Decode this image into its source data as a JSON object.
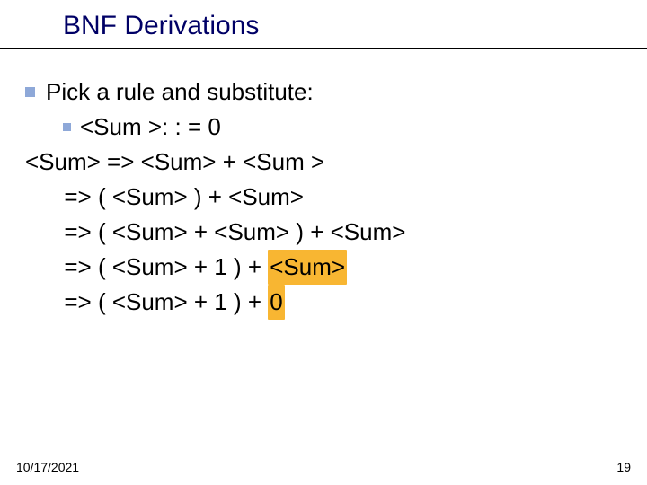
{
  "title": "BNF Derivations",
  "bullet_color": "#8ea8d8",
  "title_color": "#000066",
  "highlight_color": "#f8b632",
  "line_pick": "Pick a rule and substitute:",
  "line_rule": "<Sum >: : = 0",
  "derivation": {
    "lhs": "<Sum>",
    "rows": [
      {
        "arrow": "=>",
        "pre": "<Sum> + <Sum >",
        "hl": "",
        "post": ""
      },
      {
        "arrow": "=>",
        "pre": "( <Sum> ) + <Sum>",
        "hl": "",
        "post": ""
      },
      {
        "arrow": "=>",
        "pre": "( <Sum> + <Sum> ) + <Sum>",
        "hl": "",
        "post": ""
      },
      {
        "arrow": "=>",
        "pre": "( <Sum> + 1 ) + ",
        "hl": "<Sum>",
        "post": ""
      },
      {
        "arrow": "=>",
        "pre": "( <Sum> + 1 ) + ",
        "hl": "0",
        "post": ""
      }
    ]
  },
  "footer_date": "10/17/2021",
  "footer_page": "19"
}
